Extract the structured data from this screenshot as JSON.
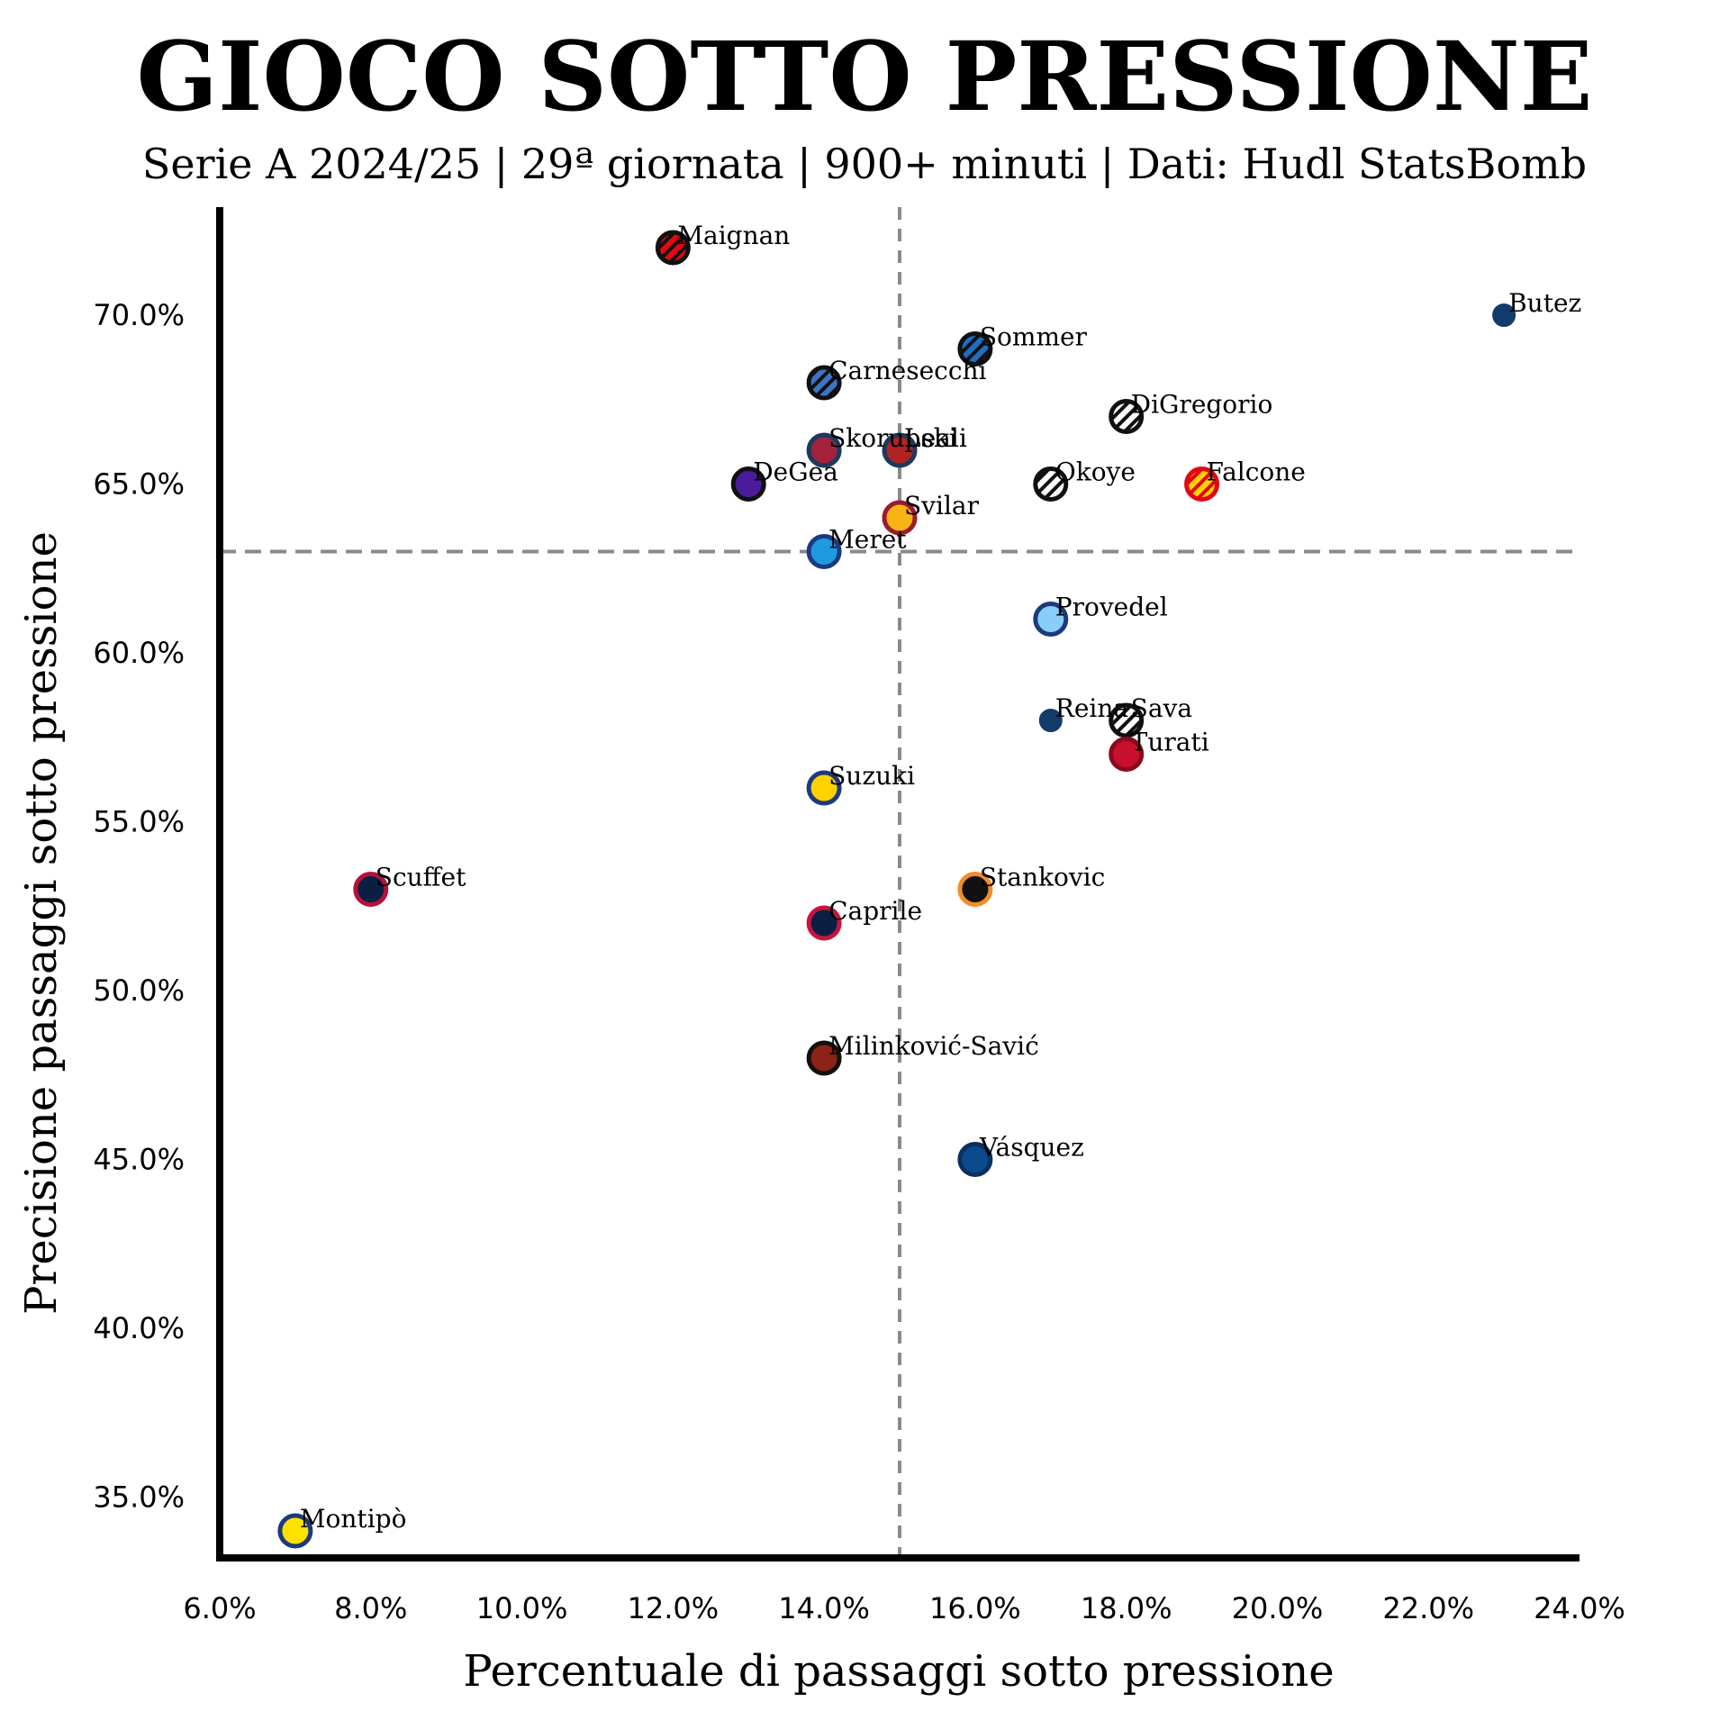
{
  "chart_data": {
    "type": "scatter",
    "title": "GIOCO SOTTO PRESSIONE",
    "subtitle": "Serie A 2024/25 | 29ª giornata | 900+ minuti | Dati: Hudl StatsBomb",
    "xlabel": "Percentuale di passaggi sotto pressione",
    "ylabel": "Precisione passaggi sotto pressione",
    "xlim": [
      6,
      24
    ],
    "ylim": [
      33.2,
      73.2
    ],
    "x_ticks": [
      6,
      8,
      10,
      12,
      14,
      16,
      18,
      20,
      22,
      24
    ],
    "x_tick_labels": [
      "6.0%",
      "8.0%",
      "10.0%",
      "12.0%",
      "14.0%",
      "16.0%",
      "18.0%",
      "20.0%",
      "22.0%",
      "24.0%"
    ],
    "y_ticks": [
      35,
      40,
      45,
      50,
      55,
      60,
      65,
      70
    ],
    "y_tick_labels": [
      "35.0%",
      "40.0%",
      "45.0%",
      "50.0%",
      "55.0%",
      "60.0%",
      "65.0%",
      "70.0%"
    ],
    "reference_lines": {
      "x_mean": 15,
      "y_mean": 63
    },
    "grid": false,
    "points": [
      {
        "name": "Maignan",
        "x": 12,
        "y": 72,
        "fill": "#e30613",
        "stroke": "#111111",
        "stripe": "#111111",
        "big": true
      },
      {
        "name": "Butez",
        "x": 23,
        "y": 70,
        "fill": "#123b6b",
        "stroke": "#123b6b",
        "big": false
      },
      {
        "name": "Sommer",
        "x": 16,
        "y": 69,
        "fill": "#1f6fc4",
        "stroke": "#111111",
        "stripe": "#111111",
        "big": true
      },
      {
        "name": "Carnesecchi",
        "x": 14,
        "y": 68,
        "fill": "#3d74c5",
        "stroke": "#111111",
        "stripe": "#111111",
        "big": true
      },
      {
        "name": "DiGregorio",
        "x": 18,
        "y": 67,
        "fill": "#ffffff",
        "stroke": "#111111",
        "stripe": "#111111",
        "big": true
      },
      {
        "name": "Leali",
        "x": 15,
        "y": 66,
        "fill": "#b22222",
        "stroke": "#1c3a5c",
        "big": true
      },
      {
        "name": "Skorupski",
        "x": 14,
        "y": 66,
        "fill": "#a3223b",
        "stroke": "#1c3a5c",
        "big": true
      },
      {
        "name": "DeGea",
        "x": 13,
        "y": 65,
        "fill": "#4b1c9b",
        "stroke": "#111111",
        "big": true
      },
      {
        "name": "Okoye",
        "x": 17,
        "y": 65,
        "fill": "#ffffff",
        "stroke": "#111111",
        "stripe": "#111111",
        "big": true
      },
      {
        "name": "Falcone",
        "x": 19,
        "y": 65,
        "fill": "#ffd200",
        "stroke": "#e30613",
        "stripe": "#e30613",
        "big": true
      },
      {
        "name": "Svilar",
        "x": 15,
        "y": 64,
        "fill": "#f7b515",
        "stroke": "#9b1b30",
        "big": true
      },
      {
        "name": "Meret",
        "x": 14,
        "y": 63,
        "fill": "#1e9be0",
        "stroke": "#1c3a7c",
        "big": true
      },
      {
        "name": "Provedel",
        "x": 17,
        "y": 61,
        "fill": "#87cefa",
        "stroke": "#1c3a7c",
        "big": true
      },
      {
        "name": "Reina",
        "x": 17,
        "y": 58,
        "fill": "#123b6b",
        "stroke": "#123b6b",
        "big": false
      },
      {
        "name": "Sava",
        "x": 18,
        "y": 58,
        "fill": "#ffffff",
        "stroke": "#111111",
        "stripe": "#111111",
        "big": true
      },
      {
        "name": "Turati",
        "x": 18,
        "y": 57,
        "fill": "#c8102e",
        "stroke": "#8b0a1e",
        "big": true
      },
      {
        "name": "Suzuki",
        "x": 14,
        "y": 56,
        "fill": "#ffd200",
        "stroke": "#1c3a7c",
        "big": true
      },
      {
        "name": "Scuffet",
        "x": 8,
        "y": 53,
        "fill": "#0b1f44",
        "stroke": "#b3123b",
        "big": true
      },
      {
        "name": "Stankovic",
        "x": 16,
        "y": 53,
        "fill": "#111111",
        "stroke": "#f28c28",
        "big": true
      },
      {
        "name": "Caprile",
        "x": 14,
        "y": 52,
        "fill": "#0b1f44",
        "stroke": "#c8143c",
        "big": true
      },
      {
        "name": "Milinković-Savić",
        "x": 14,
        "y": 48,
        "fill": "#8b2316",
        "stroke": "#111111",
        "big": true
      },
      {
        "name": "Vásquez",
        "x": 16,
        "y": 45,
        "fill": "#0b4a8c",
        "stroke": "#0b3060",
        "big": true
      },
      {
        "name": "Montipò",
        "x": 7,
        "y": 34,
        "fill": "#ffe100",
        "stroke": "#1c3a7c",
        "big": true
      }
    ]
  }
}
